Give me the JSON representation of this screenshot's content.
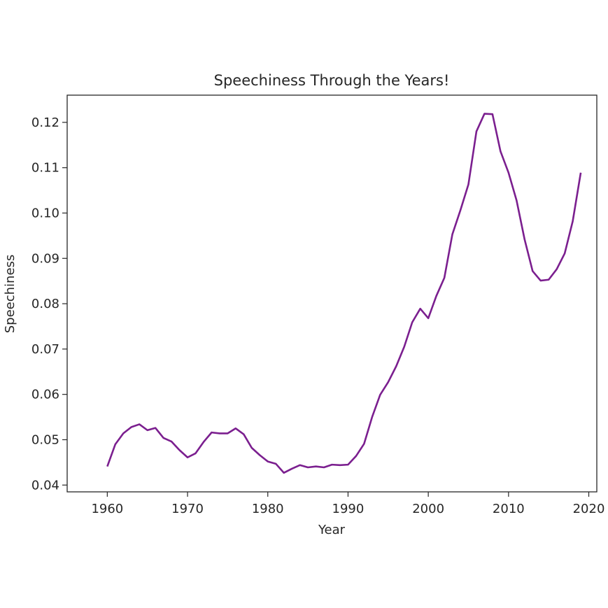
{
  "chart_data": {
    "type": "line",
    "title": "Speechiness Through the Years!",
    "xlabel": "Year",
    "ylabel": "Speechiness",
    "xlim": [
      1955,
      2021
    ],
    "ylim": [
      0.0385,
      0.126
    ],
    "x_ticks": [
      "1960",
      "1970",
      "1980",
      "1990",
      "2000",
      "2010",
      "2020"
    ],
    "y_ticks": [
      "0.04",
      "0.05",
      "0.06",
      "0.07",
      "0.08",
      "0.09",
      "0.10",
      "0.11",
      "0.12"
    ],
    "grid": false,
    "line_color": "#7b1f8f",
    "series": [
      {
        "x": [
          1960,
          1961,
          1962,
          1963,
          1964,
          1965,
          1966,
          1967,
          1968,
          1969,
          1970,
          1971,
          1972,
          1973,
          1974,
          1975,
          1976,
          1977,
          1978,
          1979,
          1980,
          1981,
          1982,
          1983,
          1984,
          1985,
          1986,
          1987,
          1988,
          1989,
          1990,
          1991,
          1992,
          1993,
          1994,
          1995,
          1996,
          1997,
          1998,
          1999,
          2000,
          2001,
          2002,
          2003,
          2004,
          2005,
          2006,
          2007,
          2008,
          2009,
          2010,
          2011,
          2012,
          2013,
          2014,
          2015,
          2016,
          2017,
          2018,
          2019
        ],
        "values": [
          0.0441,
          0.049,
          0.0514,
          0.0528,
          0.0534,
          0.0521,
          0.0526,
          0.0504,
          0.0496,
          0.0477,
          0.0461,
          0.047,
          0.0495,
          0.0516,
          0.0514,
          0.0514,
          0.0525,
          0.0512,
          0.0482,
          0.0466,
          0.0452,
          0.0447,
          0.0427,
          0.0436,
          0.0444,
          0.0439,
          0.0441,
          0.0439,
          0.0445,
          0.0444,
          0.0445,
          0.0464,
          0.0491,
          0.055,
          0.0599,
          0.0627,
          0.0662,
          0.0705,
          0.0759,
          0.0789,
          0.0768,
          0.0817,
          0.0857,
          0.0953,
          0.1006,
          0.1063,
          0.118,
          0.1219,
          0.1218,
          0.1136,
          0.1089,
          0.1028,
          0.0942,
          0.0872,
          0.0851,
          0.0853,
          0.0876,
          0.0911,
          0.0982,
          0.1089
        ]
      }
    ]
  }
}
